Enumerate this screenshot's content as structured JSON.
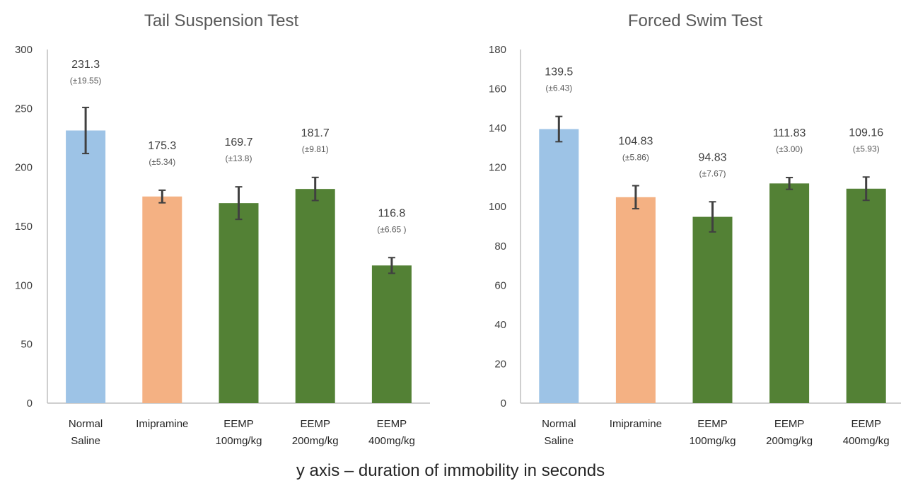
{
  "caption": "y axis – duration of immobility in seconds",
  "colors": {
    "normal_saline": "#9DC3E6",
    "imipramine": "#F4B183",
    "eemp": "#538135",
    "error_bar": "#404040",
    "axis": "#bfbfbf",
    "text": "#404040"
  },
  "chart_data": [
    {
      "type": "bar",
      "title": "Tail Suspension Test",
      "categories": [
        [
          "Normal",
          "Saline"
        ],
        [
          "Imipramine"
        ],
        [
          "EEMP",
          "100mg/kg"
        ],
        [
          "EEMP",
          "200mg/kg"
        ],
        [
          "EEMP",
          "400mg/kg"
        ]
      ],
      "values": [
        231.3,
        175.3,
        169.7,
        181.7,
        116.8
      ],
      "errors": [
        19.55,
        5.34,
        13.8,
        9.81,
        6.65
      ],
      "value_labels": [
        "231.3",
        "175.3",
        "169.7",
        "181.7",
        "116.8"
      ],
      "error_labels": [
        "(±19.55)",
        "(±5.34)",
        "(±13.8)",
        "(±9.81)",
        "(±6.65 )"
      ],
      "bar_colors": [
        "#9DC3E6",
        "#F4B183",
        "#538135",
        "#538135",
        "#538135"
      ],
      "ylim": [
        0,
        300
      ],
      "yticks": [
        0,
        50,
        100,
        150,
        200,
        250,
        300
      ],
      "grid": false
    },
    {
      "type": "bar",
      "title": "Forced Swim Test",
      "categories": [
        [
          "Normal",
          "Saline"
        ],
        [
          "Imipramine"
        ],
        [
          "EEMP",
          "100mg/kg"
        ],
        [
          "EEMP",
          "200mg/kg"
        ],
        [
          "EEMP",
          "400mg/kg"
        ]
      ],
      "values": [
        139.5,
        104.83,
        94.83,
        111.83,
        109.16
      ],
      "errors": [
        6.43,
        5.86,
        7.67,
        3.0,
        5.93
      ],
      "value_labels": [
        "139.5",
        "104.83",
        "94.83",
        "111.83",
        "109.16"
      ],
      "error_labels": [
        "(±6.43)",
        "(±5.86)",
        "(±7.67)",
        "(±3.00)",
        "(±5.93)"
      ],
      "bar_colors": [
        "#9DC3E6",
        "#F4B183",
        "#538135",
        "#538135",
        "#538135"
      ],
      "ylim": [
        0,
        180
      ],
      "yticks": [
        0,
        20,
        40,
        60,
        80,
        100,
        120,
        140,
        160,
        180
      ],
      "grid": false
    }
  ]
}
